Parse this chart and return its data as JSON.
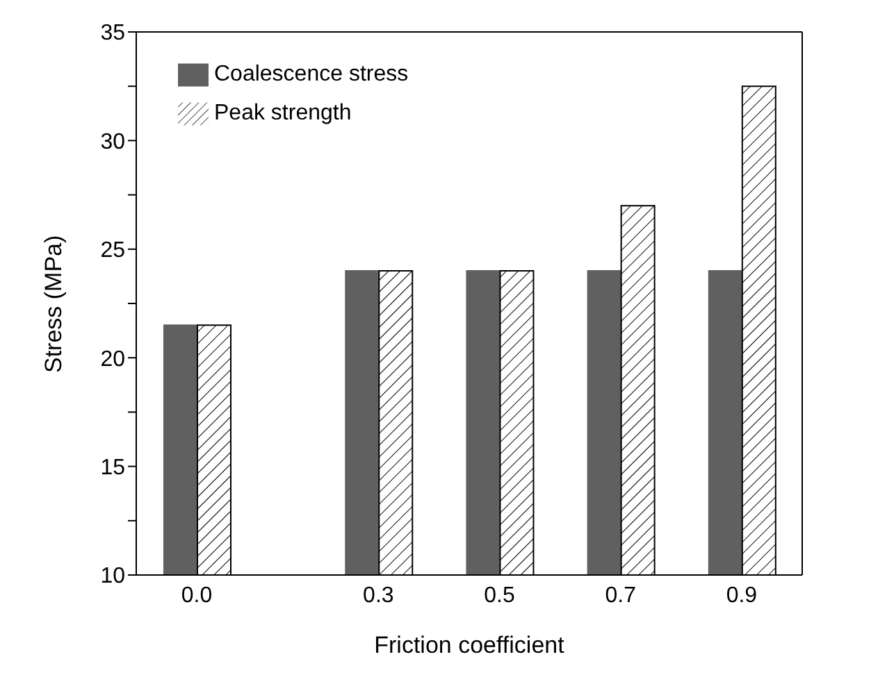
{
  "chart_data": {
    "type": "bar",
    "xlabel": "Friction coefficient",
    "ylabel": "Stress (MPa)",
    "x": [
      0.0,
      0.3,
      0.5,
      0.7,
      0.9
    ],
    "xlim": [
      -0.1,
      1.0
    ],
    "xticks": [
      {
        "value": 0.0,
        "label": "0.0"
      },
      {
        "value": 0.3,
        "label": "0.3"
      },
      {
        "value": 0.5,
        "label": "0.5"
      },
      {
        "value": 0.7,
        "label": "0.7"
      },
      {
        "value": 0.9,
        "label": "0.9"
      }
    ],
    "ylim": [
      10,
      35
    ],
    "yticks": [
      10,
      {
        "value": 12.5,
        "label": null
      },
      15,
      {
        "value": 17.5,
        "label": null
      },
      20,
      {
        "value": 22.5,
        "label": null
      },
      25,
      {
        "value": 27.5,
        "label": null
      },
      30,
      {
        "value": 32.5,
        "label": null
      },
      35
    ],
    "series": [
      {
        "name": "Coalescence stress",
        "color": "#606060",
        "values": [
          21.5,
          24,
          24,
          24,
          24
        ]
      },
      {
        "name": "Peak strength",
        "color": "#000000",
        "values": [
          21.5,
          24,
          24,
          27,
          32.5
        ]
      }
    ],
    "legend": "top left",
    "grid": false
  }
}
